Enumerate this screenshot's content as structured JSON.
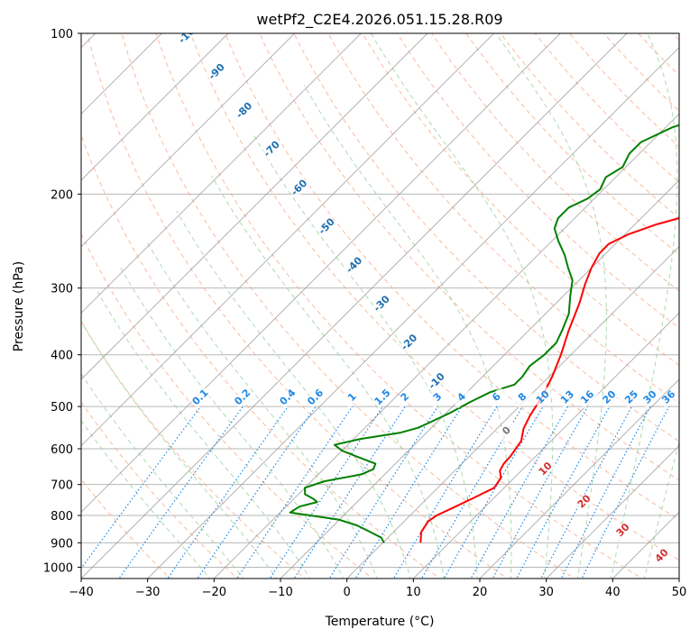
{
  "chart_data": {
    "type": "line",
    "subtype": "skew-T log-P diagram",
    "title": "wetPf2_C2E4.2026.051.15.28.R09",
    "xlabel": "Temperature (°C)",
    "ylabel": "Pressure (hPa)",
    "xlim": [
      -40,
      50
    ],
    "ylim": [
      1050,
      100
    ],
    "xticks": [
      -40,
      -30,
      -20,
      -10,
      0,
      10,
      20,
      30,
      40,
      50
    ],
    "yticks": [
      100,
      200,
      300,
      400,
      500,
      600,
      700,
      800,
      900,
      1000
    ],
    "series": [
      {
        "name": "Temperature",
        "color": "#ff0000",
        "points": [
          [
            5.7,
            900
          ],
          [
            4.2,
            860
          ],
          [
            3.6,
            820
          ],
          [
            4.0,
            800
          ],
          [
            5.5,
            770
          ],
          [
            7.0,
            740
          ],
          [
            8.5,
            710
          ],
          [
            8.0,
            680
          ],
          [
            6.8,
            660
          ],
          [
            6.3,
            640
          ],
          [
            6.2,
            620
          ],
          [
            5.5,
            580
          ],
          [
            4.0,
            550
          ],
          [
            3.0,
            520
          ],
          [
            2.0,
            480
          ],
          [
            0.5,
            440
          ],
          [
            -1.5,
            400
          ],
          [
            -4.0,
            360
          ],
          [
            -6.5,
            320
          ],
          [
            -8.5,
            295
          ],
          [
            -10.0,
            275
          ],
          [
            -11.0,
            258
          ],
          [
            -11.0,
            248
          ],
          [
            -9.5,
            238
          ],
          [
            -6.8,
            228
          ],
          [
            -3.5,
            220
          ],
          [
            -1.0,
            210
          ],
          [
            1.5,
            200
          ],
          [
            4.0,
            190
          ],
          [
            6.0,
            180
          ],
          [
            8.5,
            168
          ],
          [
            11.0,
            158
          ],
          [
            13.5,
            148
          ],
          [
            15.5,
            138
          ],
          [
            17.5,
            126
          ],
          [
            19.0,
            118
          ],
          [
            21.0,
            110
          ],
          [
            23.5,
            100
          ]
        ]
      },
      {
        "name": "Dewpoint",
        "color": "#008000",
        "points": [
          [
            0.2,
            900
          ],
          [
            -1.0,
            880
          ],
          [
            -4.0,
            855
          ],
          [
            -6.5,
            835
          ],
          [
            -10.0,
            815
          ],
          [
            -15.0,
            800
          ],
          [
            -18.5,
            790
          ],
          [
            -18.0,
            770
          ],
          [
            -16.0,
            755
          ],
          [
            -17.0,
            745
          ],
          [
            -19.0,
            730
          ],
          [
            -20.0,
            710
          ],
          [
            -18.0,
            690
          ],
          [
            -13.5,
            670
          ],
          [
            -12.5,
            655
          ],
          [
            -13.0,
            640
          ],
          [
            -17.0,
            620
          ],
          [
            -20.0,
            605
          ],
          [
            -22.0,
            590
          ],
          [
            -19.0,
            575
          ],
          [
            -14.0,
            560
          ],
          [
            -12.0,
            548
          ],
          [
            -11.0,
            535
          ],
          [
            -9.5,
            515
          ],
          [
            -8.0,
            490
          ],
          [
            -6.5,
            470
          ],
          [
            -4.0,
            455
          ],
          [
            -4.0,
            440
          ],
          [
            -4.5,
            420
          ],
          [
            -4.0,
            400
          ],
          [
            -4.0,
            380
          ],
          [
            -5.0,
            360
          ],
          [
            -6.5,
            335
          ],
          [
            -9.0,
            310
          ],
          [
            -11.0,
            290
          ],
          [
            -13.5,
            275
          ],
          [
            -16.0,
            260
          ],
          [
            -19.0,
            245
          ],
          [
            -21.5,
            232
          ],
          [
            -22.5,
            222
          ],
          [
            -22.5,
            212
          ],
          [
            -21.0,
            204
          ],
          [
            -20.5,
            196
          ],
          [
            -21.5,
            186
          ],
          [
            -20.5,
            178
          ],
          [
            -21.5,
            168
          ],
          [
            -21.5,
            160
          ],
          [
            -19.0,
            150
          ],
          [
            -14.0,
            140
          ],
          [
            -9.0,
            130
          ],
          [
            -4.5,
            120
          ],
          [
            -1.0,
            112
          ],
          [
            3.0,
            104
          ],
          [
            5.0,
            100
          ]
        ]
      }
    ],
    "isotherm_spacing": 10,
    "dry_adiabat_labels": [
      "-100",
      "-90",
      "-80",
      "-70",
      "-60",
      "-50",
      "-40",
      "-30",
      "-20",
      "-10"
    ],
    "moist_adiabat_labels": [
      "0",
      "10",
      "20",
      "30",
      "40"
    ],
    "mixing_ratio_labels": [
      "0.1",
      "0.2",
      "0.4",
      "0.6",
      "1",
      "1.5",
      "2",
      "3",
      "4",
      "6",
      "8",
      "10",
      "13",
      "16",
      "20",
      "25",
      "30",
      "36"
    ],
    "mixing_ratio_values": [
      0.1,
      0.2,
      0.4,
      0.6,
      1,
      1.5,
      2,
      3,
      4,
      6,
      8,
      10,
      13,
      16,
      20,
      25,
      30,
      36
    ],
    "colors": {
      "dry_adiabat": "#f4a582",
      "moist_adiabat": "#98d198",
      "mixing_ratio": "#1e88e5",
      "isotherm": "#999999",
      "dry_label": "#1f6fb0",
      "moist_label": "#d32f2f",
      "mixing_label": "#1e88e5"
    }
  }
}
